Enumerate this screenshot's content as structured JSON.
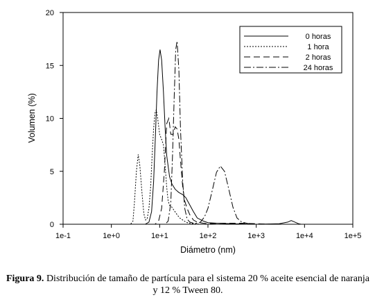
{
  "caption": {
    "label": "Figura 9.",
    "text": "Distribución de tamaño de partícula para el sistema 20 % aceite esencial de naranja y 12 % Tween 80."
  },
  "chart_data": {
    "type": "line",
    "title": "",
    "xlabel": "Diámetro (nm)",
    "ylabel": "Volumen (%)",
    "x_scale": "log",
    "xlim": [
      0.1,
      100000
    ],
    "ylim": [
      0,
      20
    ],
    "x_tick_labels": [
      "1e-1",
      "1e+0",
      "1e+1",
      "1e+2",
      "1e+3",
      "1e+4",
      "1e+5"
    ],
    "y_tick_labels": [
      "0",
      "5",
      "10",
      "15",
      "20"
    ],
    "y_ticks": [
      0,
      5,
      10,
      15,
      20
    ],
    "legend_position": "top-right",
    "series": [
      {
        "name": "0 horas",
        "dash": "",
        "x": [
          0.4,
          5,
          6,
          6.8,
          7.5,
          8.2,
          8.8,
          9.5,
          10.2,
          11,
          12,
          13,
          14,
          16,
          18,
          21,
          25,
          30,
          35,
          40,
          50,
          60,
          80,
          100,
          150,
          300,
          1000,
          3000,
          4500,
          5300,
          6300,
          7500,
          8500
        ],
        "y": [
          0,
          0,
          0.2,
          1.2,
          4,
          8.5,
          12.5,
          15.5,
          16.5,
          15.5,
          12.5,
          9,
          6.5,
          4.5,
          3.8,
          3.3,
          3.0,
          2.8,
          2.5,
          2.0,
          1.2,
          0.6,
          0.3,
          0.15,
          0.1,
          0.05,
          0,
          0.05,
          0.2,
          0.35,
          0.2,
          0.05,
          0
        ]
      },
      {
        "name": "1 hora",
        "dash": "2,2",
        "x": [
          0.4,
          2.5,
          2.8,
          3.0,
          3.3,
          3.6,
          3.9,
          4.3,
          4.7,
          5.1,
          5.5,
          6.0,
          6.5,
          7.0,
          7.5,
          8.0,
          8.5,
          9.0,
          10,
          11,
          12,
          13,
          14,
          15,
          16,
          18,
          20,
          23,
          26,
          30,
          35,
          40,
          50,
          70,
          100,
          8500
        ],
        "y": [
          0,
          0,
          0.3,
          2,
          5,
          6.6,
          5.5,
          3.0,
          1.0,
          0.4,
          0.5,
          1.5,
          3.5,
          6.5,
          9.0,
          10.5,
          10.8,
          10.2,
          8.5,
          8.0,
          7.5,
          5.5,
          3.5,
          2.2,
          1.8,
          1.6,
          1.3,
          0.9,
          0.6,
          0.4,
          0.2,
          0.1,
          0.05,
          0,
          0,
          0
        ]
      },
      {
        "name": "2 horas",
        "dash": "9,5",
        "x": [
          0.4,
          8,
          9.5,
          11,
          12.5,
          14,
          15.5,
          17,
          19,
          21,
          23,
          25,
          27,
          30,
          33,
          37,
          42,
          50,
          60,
          80,
          100,
          200,
          500,
          1000,
          2000,
          8500
        ],
        "y": [
          0,
          0,
          0.3,
          1.5,
          5.0,
          9.5,
          10.0,
          8.5,
          8.5,
          9.2,
          9.0,
          8.0,
          6.0,
          3.5,
          2.2,
          1.5,
          0.9,
          0.4,
          0.2,
          0.1,
          0.05,
          0.1,
          0.1,
          0.05,
          0,
          0
        ]
      },
      {
        "name": "24 horas",
        "dash": "10,3,2,3",
        "x": [
          0.4,
          13,
          15,
          17,
          18.5,
          20,
          21.5,
          23,
          25,
          27,
          30,
          33,
          37,
          42,
          50,
          60,
          70,
          85,
          100,
          120,
          150,
          180,
          220,
          270,
          330,
          400,
          500,
          700,
          1000,
          8500
        ],
        "y": [
          0,
          0,
          0.3,
          2,
          6.5,
          12,
          16.5,
          17.3,
          14.5,
          9,
          4.0,
          1.5,
          0.5,
          0.2,
          0.1,
          0.1,
          0.2,
          0.7,
          1.5,
          3.0,
          4.9,
          5.5,
          5.0,
          3.3,
          1.6,
          0.6,
          0.2,
          0.05,
          0,
          0
        ]
      }
    ]
  }
}
